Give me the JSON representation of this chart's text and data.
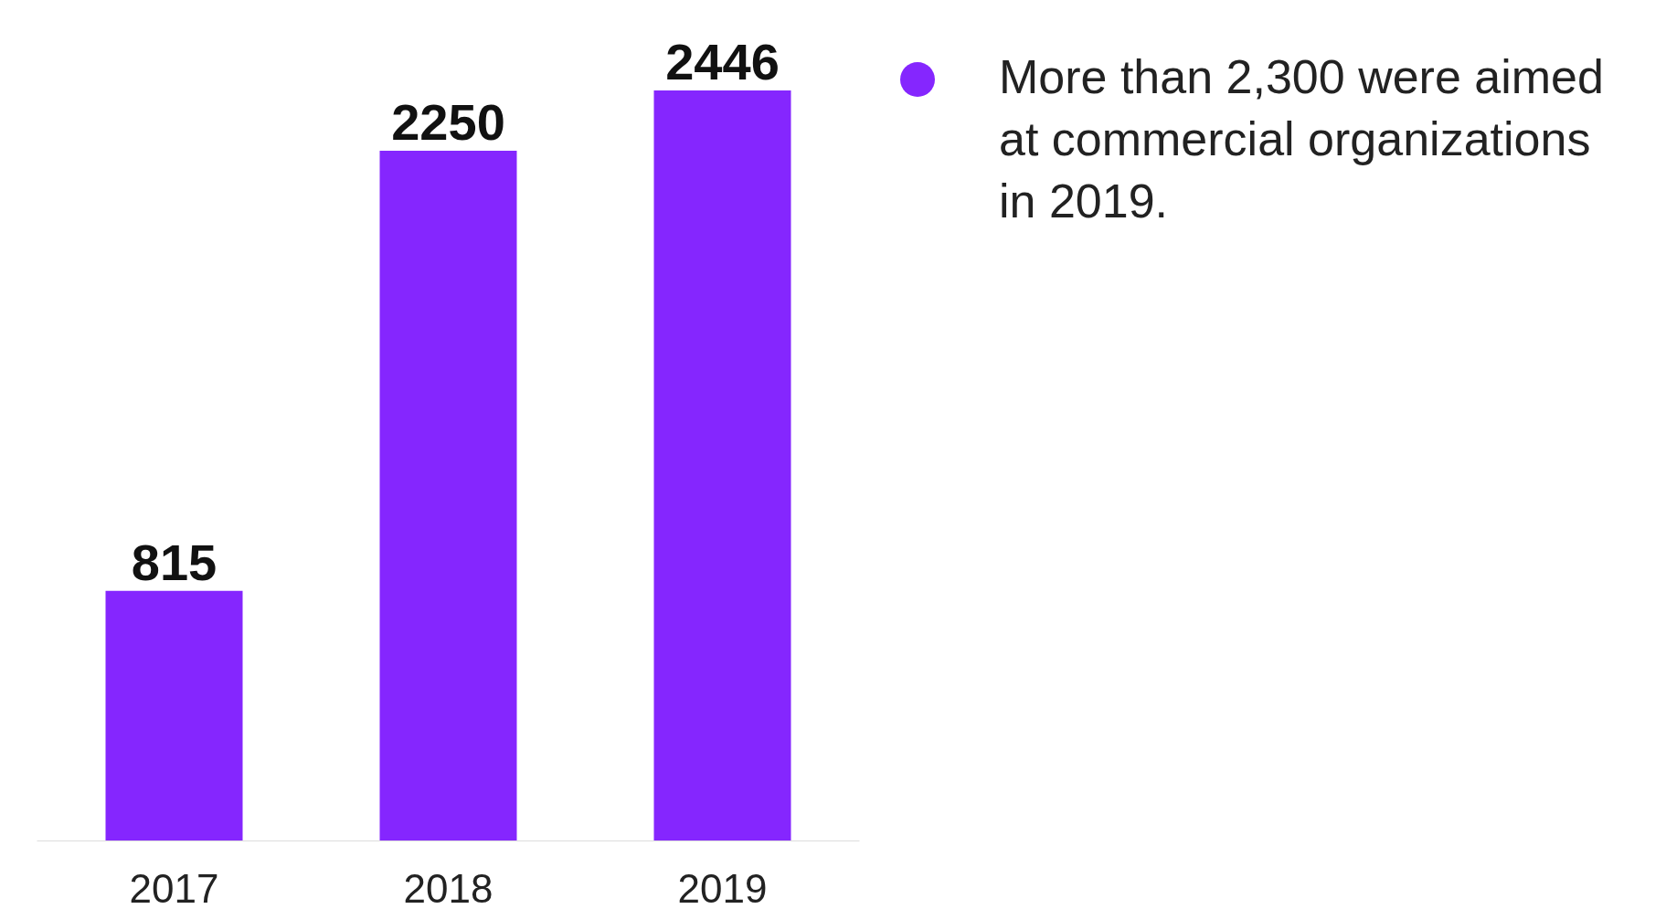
{
  "chart_data": {
    "type": "bar",
    "categories": [
      "2017",
      "2018",
      "2019"
    ],
    "values": [
      815,
      2250,
      2446
    ],
    "color": "#8526fe",
    "data_labels": true,
    "grid": false,
    "annotations": [
      "More than 2,300 were aimed at commercial organizations in 2019."
    ]
  }
}
